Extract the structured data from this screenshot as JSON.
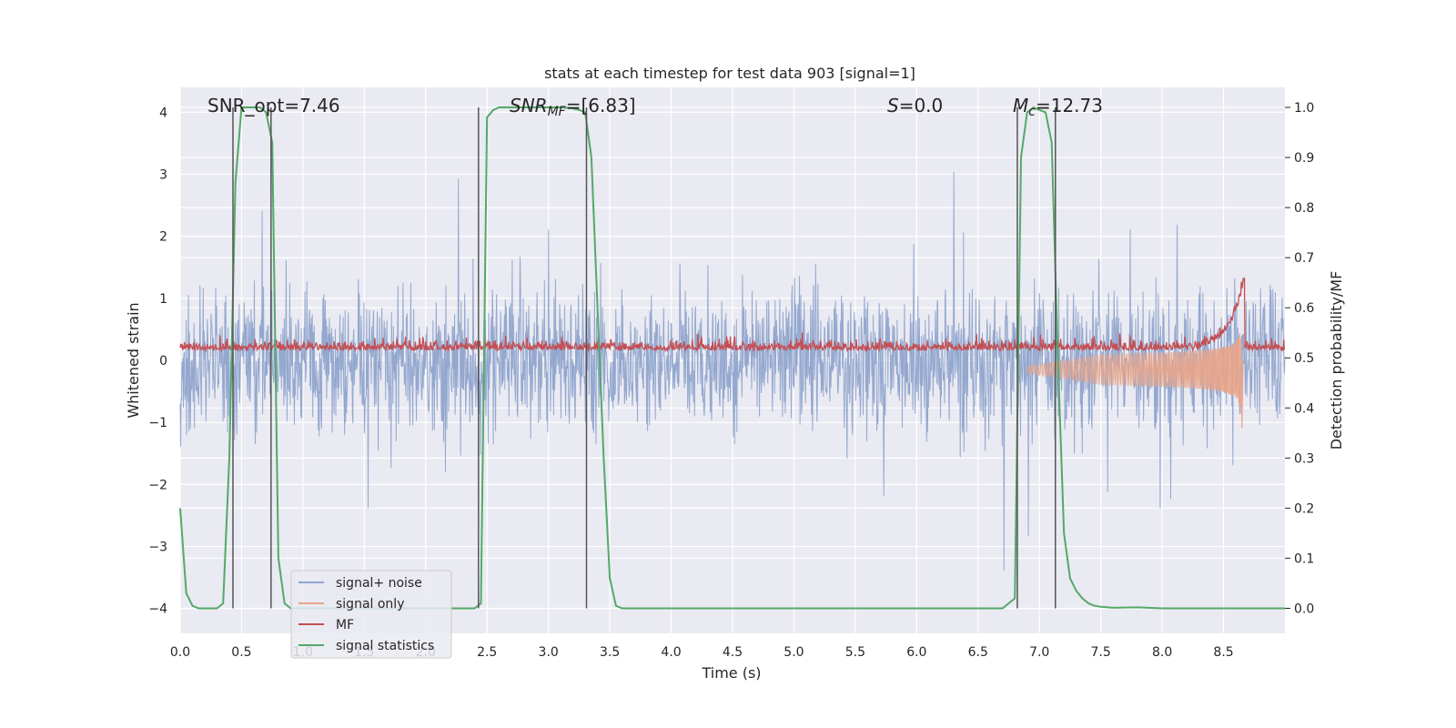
{
  "chart_data": {
    "type": "line",
    "title": "stats at each timestep for test data 903 [signal=1]",
    "xlabel": "Time (s)",
    "ylabel_left": "Whitened strain",
    "ylabel_right": "Detection probability/MF",
    "xlim": [
      0.0,
      9.0
    ],
    "ylim_left": [
      -4.4,
      4.4
    ],
    "ylim_right": [
      -0.05,
      1.04
    ],
    "x_ticks": [
      "0.0",
      "0.5",
      "1.0",
      "1.5",
      "2.0",
      "2.5",
      "3.0",
      "3.5",
      "4.0",
      "4.5",
      "5.0",
      "5.5",
      "6.0",
      "6.5",
      "7.0",
      "7.5",
      "8.0",
      "8.5"
    ],
    "y_ticks_left": [
      "−4",
      "−3",
      "−2",
      "−1",
      "0",
      "1",
      "2",
      "3",
      "4"
    ],
    "y_ticks_right": [
      "0.0",
      "0.1",
      "0.2",
      "0.3",
      "0.4",
      "0.5",
      "0.6",
      "0.7",
      "0.8",
      "0.9",
      "1.0"
    ],
    "grid": true,
    "annotations": {
      "snr_opt": "SNR_opt=7.46",
      "snr_mf_prefix": "SNR",
      "snr_mf_sub": "MF",
      "snr_mf_value": "=[6.83]",
      "s_prefix": "S",
      "s_value": "=0.0",
      "mc_prefix": "M",
      "mc_sub": "c",
      "mc_value": "=12.73"
    },
    "detection_markers": [
      0.43,
      0.74,
      2.43,
      3.31,
      6.82,
      7.13
    ],
    "series": [
      {
        "name": "signal+ noise",
        "color": "#8fa4cc",
        "axis": "left",
        "description": "noise band approx ±1.6 with spikes to ±3.7"
      },
      {
        "name": "signal only",
        "color": "#e8a48a",
        "axis": "left",
        "description": "chirp envelope growing to merger at ~8.65 s"
      },
      {
        "name": "MF",
        "color": "#c44e52",
        "axis": "right",
        "description": "matched filter output ~0.50-0.55, peak ~0.64 near 8.65 s"
      },
      {
        "name": "signal statistics",
        "color": "#55a868",
        "axis": "right",
        "x": [
          0.0,
          0.05,
          0.1,
          0.15,
          0.2,
          0.25,
          0.3,
          0.35,
          0.4,
          0.45,
          0.5,
          0.55,
          0.6,
          0.65,
          0.7,
          0.75,
          0.8,
          0.85,
          0.9,
          0.95,
          1.0,
          1.1,
          1.2,
          1.3,
          1.4,
          1.5,
          1.6,
          1.7,
          1.8,
          1.9,
          2.0,
          2.1,
          2.2,
          2.3,
          2.4,
          2.45,
          2.5,
          2.55,
          2.6,
          2.7,
          2.8,
          2.9,
          3.0,
          3.1,
          3.2,
          3.25,
          3.3,
          3.35,
          3.4,
          3.45,
          3.5,
          3.55,
          3.6,
          3.7,
          3.8,
          4.0,
          4.5,
          5.0,
          5.5,
          6.0,
          6.5,
          6.7,
          6.8,
          6.85,
          6.9,
          6.95,
          7.0,
          7.05,
          7.1,
          7.15,
          7.2,
          7.25,
          7.3,
          7.35,
          7.4,
          7.45,
          7.5,
          7.6,
          7.8,
          8.0,
          8.5,
          9.0
        ],
        "y": [
          0.2,
          0.03,
          0.005,
          0.0,
          0.0,
          0.0,
          0.0,
          0.01,
          0.3,
          0.85,
          1.0,
          1.0,
          1.0,
          1.0,
          0.99,
          0.93,
          0.1,
          0.01,
          0.0,
          0.0,
          0.0,
          0.0,
          0.0,
          0.0,
          0.0,
          0.0,
          0.0,
          0.0,
          0.0,
          0.0,
          0.0,
          0.0,
          0.0,
          0.0,
          0.0,
          0.01,
          0.98,
          0.995,
          1.0,
          1.0,
          1.0,
          1.0,
          1.0,
          1.0,
          0.998,
          0.995,
          0.99,
          0.9,
          0.6,
          0.3,
          0.06,
          0.005,
          0.0,
          0.0,
          0.0,
          0.0,
          0.0,
          0.0,
          0.0,
          0.0,
          0.0,
          0.0,
          0.02,
          0.9,
          0.99,
          1.0,
          0.995,
          0.99,
          0.93,
          0.5,
          0.15,
          0.06,
          0.035,
          0.02,
          0.01,
          0.005,
          0.003,
          0.001,
          0.002,
          0.0,
          0.0,
          0.0
        ]
      }
    ]
  }
}
